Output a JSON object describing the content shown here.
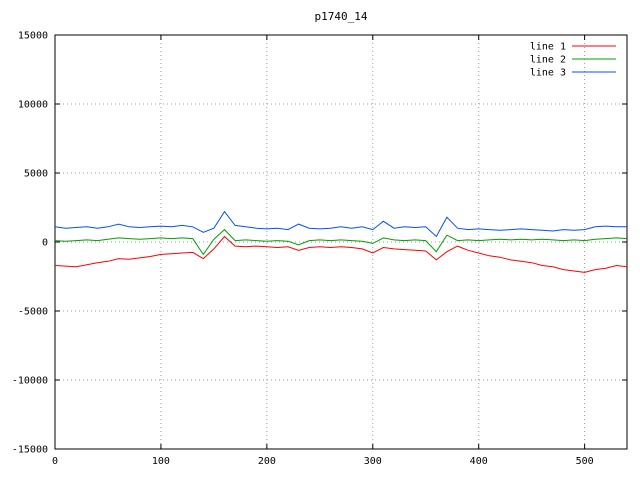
{
  "chart_data": {
    "type": "line",
    "title": "p1740_14",
    "xlabel": "",
    "ylabel": "",
    "xlim": [
      0,
      540
    ],
    "ylim": [
      -15000,
      15000
    ],
    "xticks": [
      0,
      100,
      200,
      300,
      400,
      500
    ],
    "yticks": [
      -15000,
      -10000,
      -5000,
      0,
      5000,
      10000,
      15000
    ],
    "grid": "dotted",
    "legend_position": "top-right",
    "x": [
      0,
      10,
      20,
      30,
      40,
      50,
      60,
      70,
      80,
      90,
      100,
      110,
      120,
      130,
      140,
      150,
      160,
      170,
      180,
      190,
      200,
      210,
      220,
      230,
      240,
      250,
      260,
      270,
      280,
      290,
      300,
      310,
      320,
      330,
      340,
      350,
      360,
      370,
      380,
      390,
      400,
      410,
      420,
      430,
      440,
      450,
      460,
      470,
      480,
      490,
      500,
      510,
      520,
      530,
      540
    ],
    "series": [
      {
        "name": "line 1",
        "color": "#ff0000",
        "values": [
          -1700,
          -1750,
          -1800,
          -1650,
          -1500,
          -1400,
          -1200,
          -1250,
          -1150,
          -1050,
          -900,
          -850,
          -800,
          -750,
          -1200,
          -500,
          400,
          -300,
          -350,
          -300,
          -350,
          -400,
          -350,
          -600,
          -400,
          -350,
          -400,
          -350,
          -400,
          -500,
          -800,
          -400,
          -500,
          -550,
          -600,
          -650,
          -1300,
          -700,
          -300,
          -600,
          -800,
          -1000,
          -1100,
          -1300,
          -1400,
          -1500,
          -1700,
          -1800,
          -2000,
          -2100,
          -2200,
          -2000,
          -1900,
          -1700,
          -1800
        ]
      },
      {
        "name": "line 2",
        "color": "#00a000",
        "values": [
          100,
          50,
          100,
          150,
          100,
          200,
          300,
          250,
          200,
          250,
          300,
          250,
          300,
          250,
          -900,
          200,
          900,
          100,
          150,
          100,
          50,
          100,
          50,
          -200,
          100,
          150,
          100,
          150,
          100,
          50,
          -100,
          300,
          150,
          100,
          150,
          100,
          -700,
          500,
          100,
          150,
          100,
          150,
          200,
          150,
          200,
          150,
          200,
          150,
          100,
          150,
          100,
          200,
          250,
          300,
          250
        ]
      },
      {
        "name": "line 3",
        "color": "#0050ff",
        "values": [
          1100,
          1000,
          1050,
          1100,
          1000,
          1100,
          1300,
          1100,
          1050,
          1100,
          1150,
          1100,
          1200,
          1100,
          700,
          1000,
          2200,
          1200,
          1100,
          1000,
          950,
          1000,
          900,
          1300,
          1000,
          950,
          1000,
          1100,
          1000,
          1100,
          900,
          1500,
          1000,
          1100,
          1050,
          1100,
          400,
          1800,
          1000,
          900,
          950,
          900,
          850,
          900,
          950,
          900,
          850,
          800,
          900,
          850,
          900,
          1100,
          1150,
          1100,
          1100
        ]
      }
    ]
  }
}
